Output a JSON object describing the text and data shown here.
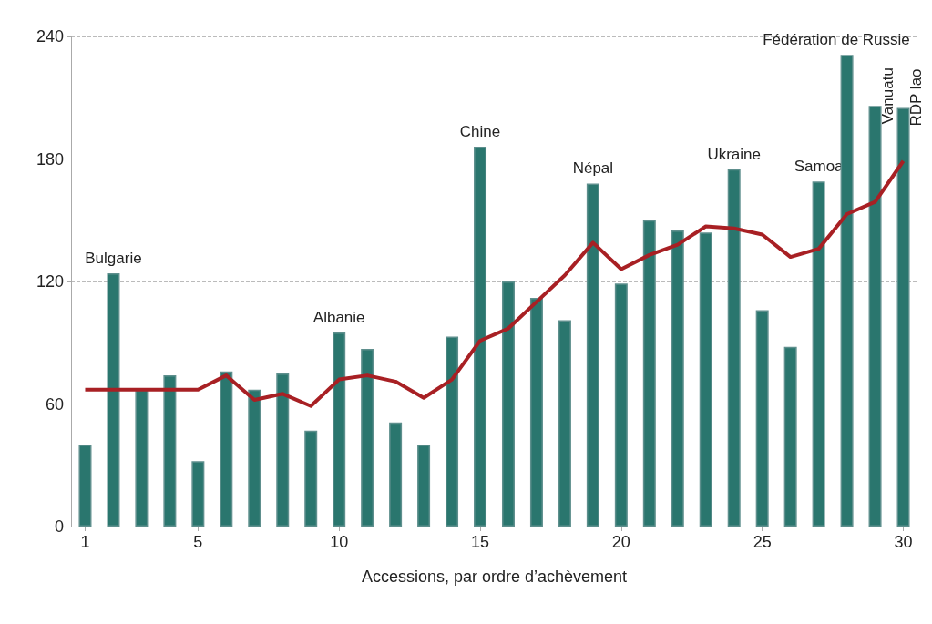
{
  "chart_data": {
    "type": "bar",
    "xlabel": "Accessions, par ordre d’achèvement",
    "x": [
      1,
      2,
      3,
      4,
      5,
      6,
      7,
      8,
      9,
      10,
      11,
      12,
      13,
      14,
      15,
      16,
      17,
      18,
      19,
      20,
      21,
      22,
      23,
      24,
      25,
      26,
      27,
      28,
      29,
      30
    ],
    "xlim": [
      0.5,
      30.5
    ],
    "xticks": [
      1,
      5,
      10,
      15,
      20,
      25,
      30
    ],
    "ylim": [
      0,
      240
    ],
    "yticks": [
      0,
      60,
      120,
      180,
      240
    ],
    "grid": "y",
    "series": [
      {
        "color": "#2a766e",
        "values": [
          40,
          124,
          67,
          74,
          32,
          76,
          67,
          75,
          47,
          95,
          87,
          51,
          40,
          93,
          186,
          120,
          112,
          101,
          168,
          119,
          150,
          145,
          144,
          175,
          106,
          88,
          169,
          231,
          206,
          205
        ]
      },
      {
        "type": "line",
        "color": "#a82024",
        "marker": "none",
        "values": [
          67,
          67,
          67,
          67,
          67,
          74,
          62,
          65,
          59,
          72,
          74,
          71,
          63,
          72,
          91,
          97,
          110,
          123,
          139,
          126,
          133,
          138,
          147,
          146,
          143,
          132,
          136,
          153,
          159,
          179
        ]
      }
    ],
    "annotations": [
      {
        "text": "Bulgarie",
        "x": 2,
        "y": 124
      },
      {
        "text": "Albanie",
        "x": 10,
        "y": 95
      },
      {
        "text": "Chine",
        "x": 15,
        "y": 186
      },
      {
        "text": "Népal",
        "x": 19,
        "y": 168
      },
      {
        "text": "Ukraine",
        "x": 24,
        "y": 175
      },
      {
        "text": "Samoa",
        "x": 27,
        "y": 169
      },
      {
        "text": "Fédération de Russie",
        "x": 28,
        "y": 231
      },
      {
        "text": "Vanuatu",
        "x": 29,
        "y": 206
      },
      {
        "text": "RDP lao",
        "x": 30,
        "y": 205
      }
    ]
  }
}
